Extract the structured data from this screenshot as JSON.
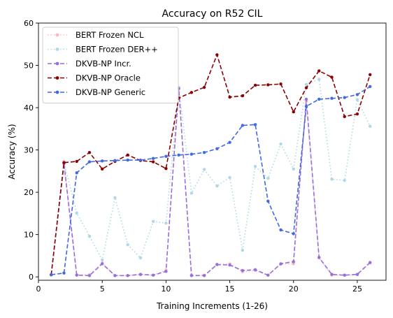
{
  "chart_data": {
    "type": "line",
    "title": "Accuracy on R52 CIL",
    "xlabel": "Training Increments (1-26)",
    "ylabel": "Accuracy (%)",
    "xlim": [
      0.0,
      27.25
    ],
    "ylim": [
      -0.8,
      60
    ],
    "xticks": [
      0,
      5,
      10,
      15,
      20,
      25
    ],
    "yticks": [
      0,
      10,
      20,
      30,
      40,
      50,
      60
    ],
    "legend_position": "top-left",
    "x": [
      1,
      2,
      3,
      4,
      5,
      6,
      7,
      8,
      9,
      10,
      11,
      12,
      13,
      14,
      15,
      16,
      17,
      18,
      19,
      20,
      21,
      22,
      23,
      24,
      25,
      26
    ],
    "series": [
      {
        "name": "BERT Frozen NCL",
        "color": "#ffb6c1",
        "style": "dotted",
        "values": [
          0.5,
          27.3,
          0.5,
          0.5,
          3.3,
          0.3,
          0.3,
          0.5,
          0.4,
          1.6,
          44.5,
          0.4,
          0.4,
          3.0,
          3.1,
          1.2,
          1.5,
          0.4,
          3.0,
          3.1,
          41.5,
          4.5,
          0.4,
          0.4,
          0.5,
          3.3
        ]
      },
      {
        "name": "BERT Frozen DER++",
        "color": "#add8e6",
        "style": "dotted",
        "values": [
          0.5,
          27.0,
          15.1,
          9.6,
          4.0,
          18.7,
          7.6,
          4.5,
          13.1,
          12.7,
          44.8,
          19.8,
          25.4,
          21.5,
          23.5,
          6.3,
          26.1,
          23.3,
          31.4,
          25.5,
          45.5,
          46.7,
          23.1,
          22.8,
          41.9,
          35.6
        ]
      },
      {
        "name": "DKVB-NP Incr.",
        "color": "#9370db",
        "style": "dashed",
        "values": [
          0.5,
          26.8,
          0.4,
          0.3,
          3.1,
          0.3,
          0.3,
          0.6,
          0.4,
          1.3,
          44.5,
          0.3,
          0.3,
          2.9,
          2.8,
          1.5,
          1.7,
          0.4,
          3.1,
          3.6,
          42.0,
          4.6,
          0.6,
          0.4,
          0.6,
          3.4
        ]
      },
      {
        "name": "DKVB-NP Oracle",
        "color": "#8b0000",
        "style": "dashed",
        "values": [
          0.5,
          27.0,
          27.3,
          29.4,
          25.5,
          27.3,
          28.8,
          27.5,
          27.2,
          25.6,
          42.3,
          43.6,
          44.8,
          52.5,
          42.5,
          42.8,
          45.3,
          45.4,
          45.6,
          39.0,
          44.7,
          48.7,
          47.2,
          37.9,
          38.5,
          47.8
        ]
      },
      {
        "name": "DKVB-NP Generic",
        "color": "#4169e1",
        "style": "dashed",
        "values": [
          0.5,
          0.9,
          24.6,
          27.2,
          27.4,
          27.5,
          27.6,
          27.6,
          28.0,
          28.5,
          28.8,
          29.0,
          29.4,
          30.3,
          31.8,
          35.8,
          36.0,
          17.9,
          11.1,
          10.2,
          40.3,
          42.0,
          42.2,
          42.4,
          43.1,
          45.0
        ]
      }
    ]
  }
}
